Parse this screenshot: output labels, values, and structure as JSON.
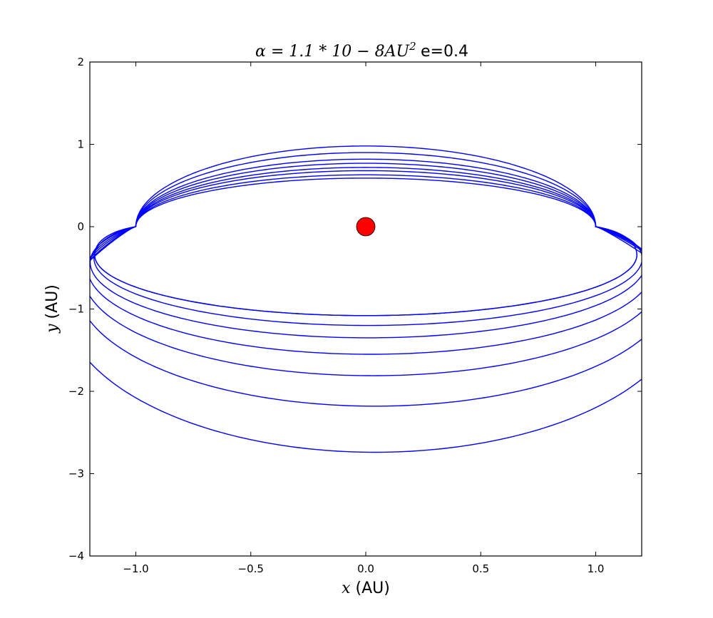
{
  "chart_data": {
    "type": "line",
    "title": {
      "math": "α = 1.1 * 10 − 8AU",
      "math_superscript": "2",
      "plain": "e=0.4"
    },
    "xlabel": {
      "var": "x",
      "unit": " (AU)"
    },
    "ylabel": {
      "var": "y",
      "unit": " (AU)"
    },
    "xlim": [
      -1.2,
      1.2
    ],
    "ylim": [
      -4,
      2
    ],
    "xticks": [
      -1.0,
      -0.5,
      0.0,
      0.5,
      1.0
    ],
    "xtick_labels": [
      "−1.0",
      "−0.5",
      "0.0",
      "0.5",
      "1.0"
    ],
    "yticks": [
      -4,
      -3,
      -2,
      -1,
      0,
      1,
      2
    ],
    "ytick_labels": [
      "−4",
      "−3",
      "−2",
      "−1",
      "0",
      "1",
      "2"
    ],
    "grid": false,
    "line_color": "#0000ff",
    "series": [
      {
        "top": 0.98,
        "bottom_center": -2.74,
        "x_shift": 0.04
      },
      {
        "top": 0.9,
        "bottom_center": -2.18,
        "x_shift": 0.04
      },
      {
        "top": 0.82,
        "bottom_center": -1.81,
        "x_shift": 0.03
      },
      {
        "top": 0.77,
        "bottom_center": -1.55,
        "x_shift": 0.02
      },
      {
        "top": 0.72,
        "bottom_center": -1.35,
        "x_shift": 0.01
      },
      {
        "top": 0.68,
        "bottom_center": -1.2,
        "x_shift": 0.01
      },
      {
        "top": 0.63,
        "bottom_center": -1.08,
        "x_shift": 0.0
      },
      {
        "top": 0.59,
        "bottom_center": -1.08,
        "x_shift": 0.0
      }
    ],
    "markers": [
      {
        "label": "Sun",
        "x": 0.0,
        "y": 0.0,
        "color": "#ff0000"
      }
    ]
  }
}
